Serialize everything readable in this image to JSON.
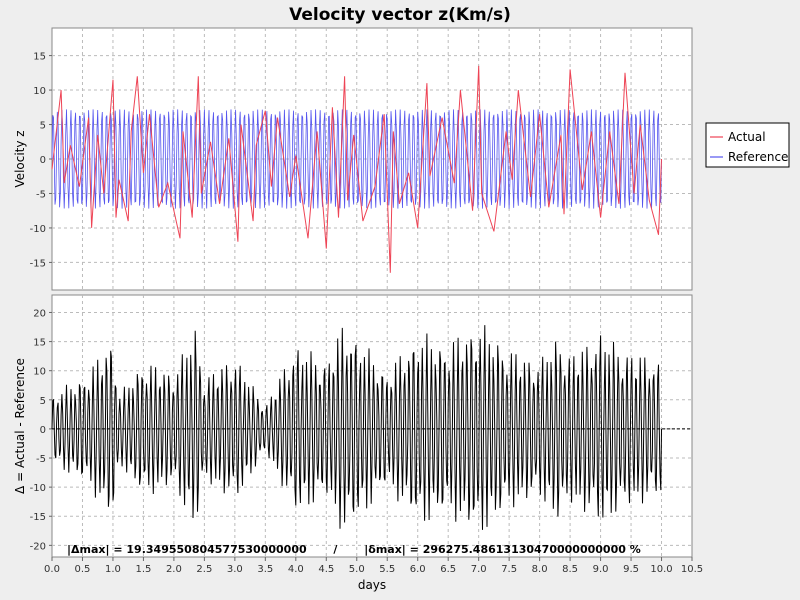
{
  "title": "Velocity vector z(Km/s)",
  "chart_data": [
    {
      "type": "line",
      "ylabel": "Velocity z",
      "xlabel": "",
      "xlim": [
        0,
        10.5
      ],
      "ylim": [
        -19,
        19
      ],
      "xticks": [
        0.0,
        0.5,
        1.0,
        1.5,
        2.0,
        2.5,
        3.0,
        3.5,
        4.0,
        4.5,
        5.0,
        5.5,
        6.0,
        6.5,
        7.0,
        7.5,
        8.0,
        8.5,
        9.0,
        9.5,
        10.0,
        10.5
      ],
      "yticks": [
        -15,
        -10,
        -5,
        0,
        5,
        10,
        15
      ],
      "grid": true,
      "legend": "right",
      "series": [
        {
          "name": "Actual",
          "color": "#ee4455",
          "x": [
            0.0,
            0.15,
            0.2,
            0.3,
            0.45,
            0.6,
            0.65,
            0.75,
            0.85,
            1.0,
            1.05,
            1.1,
            1.25,
            1.3,
            1.4,
            1.5,
            1.6,
            1.75,
            1.9,
            2.1,
            2.15,
            2.3,
            2.4,
            2.45,
            2.6,
            2.75,
            2.9,
            3.05,
            3.1,
            3.3,
            3.35,
            3.5,
            3.6,
            3.7,
            3.9,
            4.0,
            4.2,
            4.35,
            4.5,
            4.6,
            4.7,
            4.8,
            4.85,
            4.95,
            5.1,
            5.3,
            5.45,
            5.55,
            5.6,
            5.7,
            5.85,
            6.0,
            6.15,
            6.2,
            6.4,
            6.6,
            6.7,
            6.9,
            7.0,
            7.05,
            7.25,
            7.45,
            7.55,
            7.65,
            7.85,
            8.0,
            8.15,
            8.35,
            8.4,
            8.5,
            8.7,
            8.85,
            9.0,
            9.15,
            9.3,
            9.4,
            9.55,
            9.65,
            9.8,
            9.95,
            10.0
          ],
          "y": [
            -1.5,
            10.0,
            -3.5,
            2.0,
            -4.0,
            6.0,
            -10.0,
            3.5,
            -5.0,
            11.5,
            -8.5,
            -3.0,
            -9.0,
            4.0,
            12.0,
            -2.0,
            6.5,
            -7.0,
            -3.5,
            -11.5,
            4.0,
            -8.5,
            12.0,
            -5.0,
            2.5,
            -6.5,
            3.0,
            -12.0,
            5.0,
            -9.0,
            2.0,
            7.0,
            -4.0,
            6.0,
            -5.5,
            0.5,
            -11.5,
            4.0,
            -13.0,
            7.5,
            -8.5,
            12.0,
            -6.0,
            3.5,
            -9.0,
            -4.0,
            6.5,
            -16.5,
            4.0,
            -6.5,
            -2.0,
            -10.0,
            11.0,
            -2.5,
            6.0,
            -3.5,
            10.0,
            -7.5,
            13.5,
            -5.0,
            -10.5,
            4.0,
            -3.0,
            10.0,
            -5.5,
            6.5,
            -7.0,
            3.5,
            -8.0,
            13.0,
            -4.5,
            4.0,
            -8.5,
            4.0,
            -6.5,
            12.5,
            -5.0,
            5.0,
            -6.0,
            -11.0,
            0.0
          ]
        },
        {
          "name": "Reference",
          "color": "#5555ee",
          "amplitude": 7.2,
          "samples": 800,
          "cycles": 137
        }
      ]
    },
    {
      "type": "line",
      "ylabel": "Δ = Actual - Reference",
      "xlabel": "days",
      "xlim": [
        0,
        10.5
      ],
      "ylim": [
        -22,
        23
      ],
      "xticks": [
        0.0,
        0.5,
        1.0,
        1.5,
        2.0,
        2.5,
        3.0,
        3.5,
        4.0,
        4.5,
        5.0,
        5.5,
        6.0,
        6.5,
        7.0,
        7.5,
        8.0,
        8.5,
        9.0,
        9.5,
        10.0,
        10.5
      ],
      "yticks": [
        -20,
        -15,
        -10,
        -5,
        0,
        5,
        10,
        15,
        20
      ],
      "grid": true,
      "zero_line": true,
      "series": [
        {
          "name": "Δ",
          "color": "#000000",
          "samples": 800,
          "cycles": 137,
          "envelope_x": [
            0.0,
            0.6,
            1.0,
            1.1,
            1.5,
            2.0,
            2.35,
            2.5,
            3.0,
            3.5,
            4.0,
            4.5,
            4.8,
            5.5,
            6.0,
            6.5,
            7.0,
            7.5,
            8.0,
            8.3,
            8.5,
            9.0,
            9.4,
            10.0
          ],
          "envelope_y": [
            6.0,
            10.0,
            16.5,
            6.0,
            12.0,
            10.0,
            18.0,
            9.0,
            13.0,
            4.0,
            15.0,
            12.0,
            19.0,
            10.0,
            17.0,
            15.0,
            19.0,
            14.0,
            12.0,
            16.5,
            13.0,
            17.0,
            14.0,
            12.0
          ]
        }
      ],
      "annotation": "|Δmax| = 19.349550804577530000000       /       |δmax| = 296275.48613130470000000000 %"
    }
  ]
}
